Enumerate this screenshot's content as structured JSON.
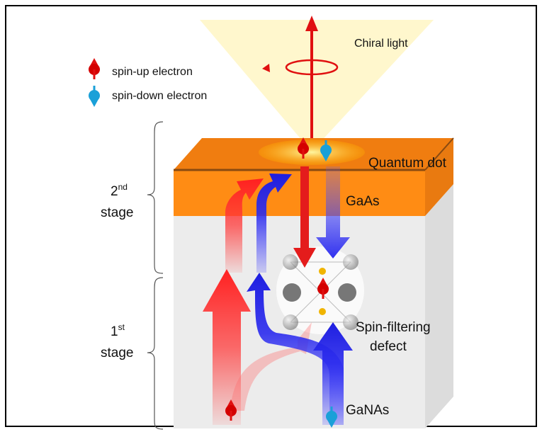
{
  "legend": [
    {
      "label": "spin-up electron"
    },
    {
      "label": "spin-down electron"
    }
  ],
  "labels": {
    "chiral_light": "Chiral light",
    "quantum_dot": "Quantum dot",
    "gaas": "GaAs",
    "defect": [
      "Spin-filtering",
      "defect"
    ],
    "ganas": "GaNAs"
  },
  "stages": [
    {
      "number": "2",
      "suffix": "nd",
      "word": "stage"
    },
    {
      "number": "1",
      "suffix": "st",
      "word": "stage"
    }
  ]
}
